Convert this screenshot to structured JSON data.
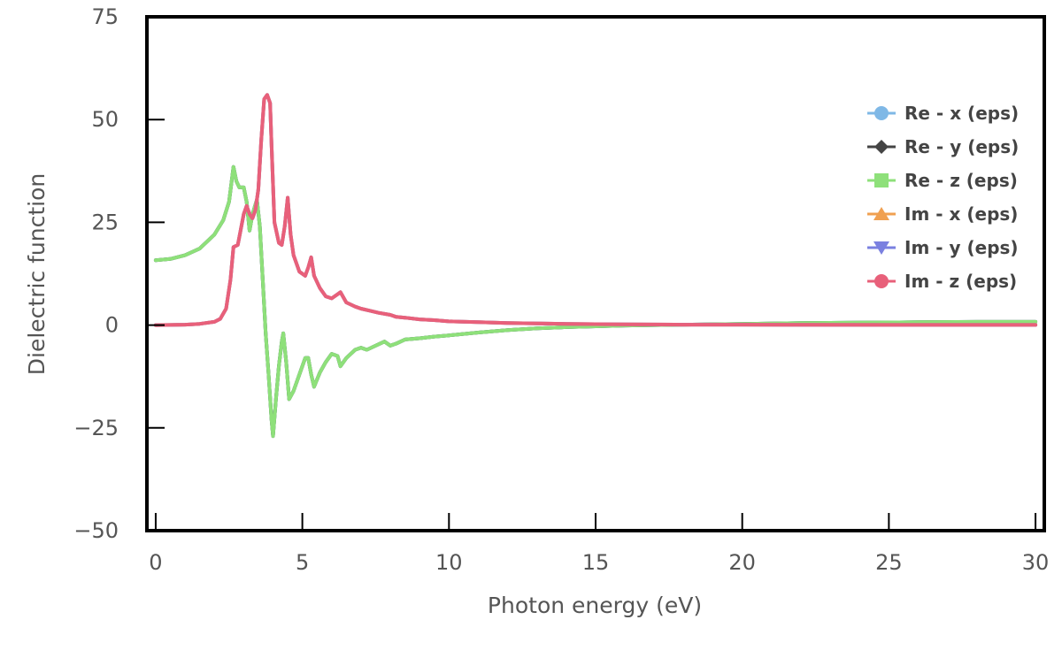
{
  "chart_data": {
    "type": "line",
    "title": "",
    "xlabel": "Photon energy (eV)",
    "ylabel": "Dielectric function",
    "xlim": [
      -0.3,
      30.3
    ],
    "ylim": [
      -50,
      75
    ],
    "xticks": [
      0,
      5,
      10,
      15,
      20,
      25,
      30
    ],
    "yticks": [
      -50,
      -25,
      0,
      25,
      50,
      75
    ],
    "xtick_labels": [
      "0",
      "5",
      "10",
      "15",
      "20",
      "25",
      "30"
    ],
    "ytick_labels": [
      "−50",
      "−25",
      "0",
      "25",
      "50",
      "75"
    ],
    "grid": false,
    "legend_position": "top-right",
    "series": [
      {
        "name": "Re - x (eps)",
        "color": "#7fb8e6",
        "marker": "circle",
        "x": [
          0,
          0.5,
          1.0,
          1.5,
          2.0,
          2.3,
          2.5,
          2.65,
          2.75,
          2.85,
          3.0,
          3.1,
          3.2,
          3.3,
          3.45,
          3.55,
          3.65,
          3.75,
          3.85,
          3.95,
          4.0,
          4.1,
          4.2,
          4.3,
          4.35,
          4.45,
          4.55,
          4.7,
          4.9,
          5.1,
          5.2,
          5.3,
          5.4,
          5.6,
          5.8,
          6.0,
          6.2,
          6.3,
          6.5,
          6.8,
          7.0,
          7.2,
          7.5,
          7.8,
          8.0,
          8.2,
          8.5,
          9.0,
          9.5,
          10.0,
          11.0,
          12.0,
          13.0,
          14.0,
          15.0,
          16.0,
          17.0,
          18.0,
          20.0,
          22.0,
          24.0,
          26.0,
          28.0,
          30.0
        ],
        "y": [
          15.8,
          16.1,
          17.0,
          18.6,
          22.0,
          25.5,
          30.0,
          38.5,
          35.0,
          33.5,
          33.5,
          30.0,
          23.0,
          27.0,
          30.5,
          24.0,
          11.0,
          -2.0,
          -12.0,
          -23.0,
          -27.0,
          -18.0,
          -10.0,
          -4.0,
          -2.0,
          -9.0,
          -18.0,
          -16.0,
          -12.0,
          -8.0,
          -8.0,
          -12.0,
          -15.0,
          -11.5,
          -9.0,
          -7.0,
          -7.5,
          -10.0,
          -8.0,
          -6.0,
          -5.5,
          -6.0,
          -5.0,
          -4.0,
          -5.0,
          -4.5,
          -3.5,
          -3.2,
          -2.8,
          -2.5,
          -1.8,
          -1.2,
          -0.8,
          -0.5,
          -0.3,
          -0.1,
          0.0,
          0.1,
          0.3,
          0.5,
          0.6,
          0.7,
          0.8,
          0.8
        ]
      },
      {
        "name": "Re - y (eps)",
        "color": "#444444",
        "marker": "diamond",
        "x": [
          0,
          0.5,
          1.0,
          1.5,
          2.0,
          2.3,
          2.5,
          2.65,
          2.75,
          2.85,
          3.0,
          3.1,
          3.2,
          3.3,
          3.45,
          3.55,
          3.65,
          3.75,
          3.85,
          3.95,
          4.0,
          4.1,
          4.2,
          4.3,
          4.35,
          4.45,
          4.55,
          4.7,
          4.9,
          5.1,
          5.2,
          5.3,
          5.4,
          5.6,
          5.8,
          6.0,
          6.2,
          6.3,
          6.5,
          6.8,
          7.0,
          7.2,
          7.5,
          7.8,
          8.0,
          8.2,
          8.5,
          9.0,
          9.5,
          10.0,
          11.0,
          12.0,
          13.0,
          14.0,
          15.0,
          16.0,
          17.0,
          18.0,
          20.0,
          22.0,
          24.0,
          26.0,
          28.0,
          30.0
        ],
        "y": [
          15.8,
          16.1,
          17.0,
          18.6,
          22.0,
          25.5,
          30.0,
          38.5,
          35.0,
          33.5,
          33.5,
          30.0,
          23.0,
          27.0,
          30.5,
          24.0,
          11.0,
          -2.0,
          -12.0,
          -23.0,
          -27.0,
          -18.0,
          -10.0,
          -4.0,
          -2.0,
          -9.0,
          -18.0,
          -16.0,
          -12.0,
          -8.0,
          -8.0,
          -12.0,
          -15.0,
          -11.5,
          -9.0,
          -7.0,
          -7.5,
          -10.0,
          -8.0,
          -6.0,
          -5.5,
          -6.0,
          -5.0,
          -4.0,
          -5.0,
          -4.5,
          -3.5,
          -3.2,
          -2.8,
          -2.5,
          -1.8,
          -1.2,
          -0.8,
          -0.5,
          -0.3,
          -0.1,
          0.0,
          0.1,
          0.3,
          0.5,
          0.6,
          0.7,
          0.8,
          0.8
        ]
      },
      {
        "name": "Re - z (eps)",
        "color": "#8ee07a",
        "marker": "square",
        "x": [
          0,
          0.5,
          1.0,
          1.5,
          2.0,
          2.3,
          2.5,
          2.65,
          2.75,
          2.85,
          3.0,
          3.1,
          3.2,
          3.3,
          3.45,
          3.55,
          3.65,
          3.75,
          3.85,
          3.95,
          4.0,
          4.1,
          4.2,
          4.3,
          4.35,
          4.45,
          4.55,
          4.7,
          4.9,
          5.1,
          5.2,
          5.3,
          5.4,
          5.6,
          5.8,
          6.0,
          6.2,
          6.3,
          6.5,
          6.8,
          7.0,
          7.2,
          7.5,
          7.8,
          8.0,
          8.2,
          8.5,
          9.0,
          9.5,
          10.0,
          11.0,
          12.0,
          13.0,
          14.0,
          15.0,
          16.0,
          17.0,
          18.0,
          20.0,
          22.0,
          24.0,
          26.0,
          28.0,
          30.0
        ],
        "y": [
          15.8,
          16.1,
          17.0,
          18.6,
          22.0,
          25.5,
          30.0,
          38.5,
          35.0,
          33.5,
          33.5,
          30.0,
          23.0,
          27.0,
          30.5,
          24.0,
          11.0,
          -2.0,
          -12.0,
          -23.0,
          -27.0,
          -18.0,
          -10.0,
          -4.0,
          -2.0,
          -9.0,
          -18.0,
          -16.0,
          -12.0,
          -8.0,
          -8.0,
          -12.0,
          -15.0,
          -11.5,
          -9.0,
          -7.0,
          -7.5,
          -10.0,
          -8.0,
          -6.0,
          -5.5,
          -6.0,
          -5.0,
          -4.0,
          -5.0,
          -4.5,
          -3.5,
          -3.2,
          -2.8,
          -2.5,
          -1.8,
          -1.2,
          -0.8,
          -0.5,
          -0.3,
          -0.1,
          0.0,
          0.1,
          0.3,
          0.5,
          0.6,
          0.7,
          0.8,
          0.8
        ]
      },
      {
        "name": "Im - x (eps)",
        "color": "#f0a050",
        "marker": "triangle-up",
        "x": [
          0,
          1.0,
          1.5,
          2.0,
          2.2,
          2.4,
          2.55,
          2.65,
          2.8,
          3.0,
          3.1,
          3.2,
          3.3,
          3.4,
          3.5,
          3.6,
          3.7,
          3.8,
          3.9,
          3.95,
          4.05,
          4.2,
          4.3,
          4.4,
          4.5,
          4.6,
          4.7,
          4.9,
          5.1,
          5.2,
          5.3,
          5.4,
          5.6,
          5.8,
          6.0,
          6.2,
          6.3,
          6.5,
          6.8,
          7.0,
          7.3,
          7.6,
          8.0,
          8.2,
          8.5,
          9.0,
          9.5,
          10.0,
          11.0,
          12.0,
          14.0,
          16.0,
          18.0,
          20.0,
          25.0,
          30.0
        ],
        "y": [
          0.0,
          0.1,
          0.3,
          0.8,
          1.5,
          4.0,
          11.0,
          19.0,
          19.5,
          27.0,
          29.0,
          27.0,
          26.0,
          28.0,
          33.0,
          45.0,
          55.0,
          56.0,
          54.0,
          44.0,
          25.0,
          20.0,
          19.5,
          24.0,
          31.0,
          22.0,
          17.0,
          13.0,
          12.0,
          14.0,
          16.5,
          12.0,
          9.0,
          7.0,
          6.5,
          7.5,
          8.0,
          5.5,
          4.5,
          4.0,
          3.5,
          3.0,
          2.5,
          2.0,
          1.8,
          1.4,
          1.2,
          0.9,
          0.7,
          0.5,
          0.3,
          0.2,
          0.1,
          0.1,
          0.05,
          0.05
        ]
      },
      {
        "name": "Im - y (eps)",
        "color": "#7a80e0",
        "marker": "triangle-down",
        "x": [
          0,
          1.0,
          1.5,
          2.0,
          2.2,
          2.4,
          2.55,
          2.65,
          2.8,
          3.0,
          3.1,
          3.2,
          3.3,
          3.4,
          3.5,
          3.6,
          3.7,
          3.8,
          3.9,
          3.95,
          4.05,
          4.2,
          4.3,
          4.4,
          4.5,
          4.6,
          4.7,
          4.9,
          5.1,
          5.2,
          5.3,
          5.4,
          5.6,
          5.8,
          6.0,
          6.2,
          6.3,
          6.5,
          6.8,
          7.0,
          7.3,
          7.6,
          8.0,
          8.2,
          8.5,
          9.0,
          9.5,
          10.0,
          11.0,
          12.0,
          14.0,
          16.0,
          18.0,
          20.0,
          25.0,
          30.0
        ],
        "y": [
          0.0,
          0.1,
          0.3,
          0.8,
          1.5,
          4.0,
          11.0,
          19.0,
          19.5,
          27.0,
          29.0,
          27.0,
          26.0,
          28.0,
          33.0,
          45.0,
          55.0,
          56.0,
          54.0,
          44.0,
          25.0,
          20.0,
          19.5,
          24.0,
          31.0,
          22.0,
          17.0,
          13.0,
          12.0,
          14.0,
          16.5,
          12.0,
          9.0,
          7.0,
          6.5,
          7.5,
          8.0,
          5.5,
          4.5,
          4.0,
          3.5,
          3.0,
          2.5,
          2.0,
          1.8,
          1.4,
          1.2,
          0.9,
          0.7,
          0.5,
          0.3,
          0.2,
          0.1,
          0.1,
          0.05,
          0.05
        ]
      },
      {
        "name": "Im - z (eps)",
        "color": "#e8607a",
        "marker": "circle",
        "x": [
          0,
          1.0,
          1.5,
          2.0,
          2.2,
          2.4,
          2.55,
          2.65,
          2.8,
          3.0,
          3.1,
          3.2,
          3.3,
          3.4,
          3.5,
          3.6,
          3.7,
          3.8,
          3.9,
          3.95,
          4.05,
          4.2,
          4.3,
          4.4,
          4.5,
          4.6,
          4.7,
          4.9,
          5.1,
          5.2,
          5.3,
          5.4,
          5.6,
          5.8,
          6.0,
          6.2,
          6.3,
          6.5,
          6.8,
          7.0,
          7.3,
          7.6,
          8.0,
          8.2,
          8.5,
          9.0,
          9.5,
          10.0,
          11.0,
          12.0,
          14.0,
          16.0,
          18.0,
          20.0,
          25.0,
          30.0
        ],
        "y": [
          0.0,
          0.1,
          0.3,
          0.8,
          1.5,
          4.0,
          11.0,
          19.0,
          19.5,
          27.0,
          29.0,
          27.0,
          26.0,
          28.0,
          33.0,
          45.0,
          55.0,
          56.0,
          54.0,
          44.0,
          25.0,
          20.0,
          19.5,
          24.0,
          31.0,
          22.0,
          17.0,
          13.0,
          12.0,
          14.0,
          16.5,
          12.0,
          9.0,
          7.0,
          6.5,
          7.5,
          8.0,
          5.5,
          4.5,
          4.0,
          3.5,
          3.0,
          2.5,
          2.0,
          1.8,
          1.4,
          1.2,
          0.9,
          0.7,
          0.5,
          0.3,
          0.2,
          0.1,
          0.1,
          0.05,
          0.05
        ]
      }
    ]
  }
}
